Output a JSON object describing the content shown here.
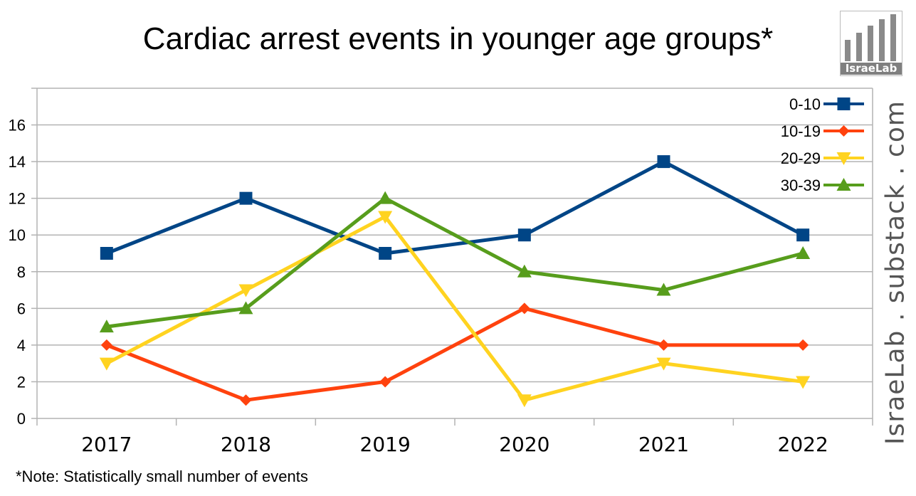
{
  "title": "Cardiac arrest events in younger age groups*",
  "note": "*Note: Statistically small number of events",
  "watermark": "IsraeLab . substack . com",
  "logo": {
    "text": "IsraeLab",
    "bar_levels": [
      0.45,
      0.6,
      0.75,
      0.9,
      1.0
    ]
  },
  "chart_data": {
    "type": "line",
    "title": "Cardiac arrest events in younger age groups*",
    "xlabel": "",
    "ylabel": "",
    "categories": [
      "2017",
      "2018",
      "2019",
      "2020",
      "2021",
      "2022"
    ],
    "ylim": [
      0,
      18
    ],
    "yticks": [
      0,
      2,
      4,
      6,
      8,
      10,
      12,
      14,
      16
    ],
    "grid": true,
    "legend_position": "top-right",
    "series": [
      {
        "name": "0-10",
        "color": "#004586",
        "marker": "square",
        "values": [
          9,
          12,
          9,
          10,
          14,
          10
        ]
      },
      {
        "name": "10-19",
        "color": "#ff420e",
        "marker": "diamond",
        "values": [
          4,
          1,
          2,
          6,
          4,
          4
        ]
      },
      {
        "name": "20-29",
        "color": "#ffd320",
        "marker": "triangle-down",
        "values": [
          3,
          7,
          11,
          1,
          3,
          2
        ]
      },
      {
        "name": "30-39",
        "color": "#579d1c",
        "marker": "triangle-up",
        "values": [
          5,
          6,
          12,
          8,
          7,
          9
        ]
      }
    ]
  }
}
